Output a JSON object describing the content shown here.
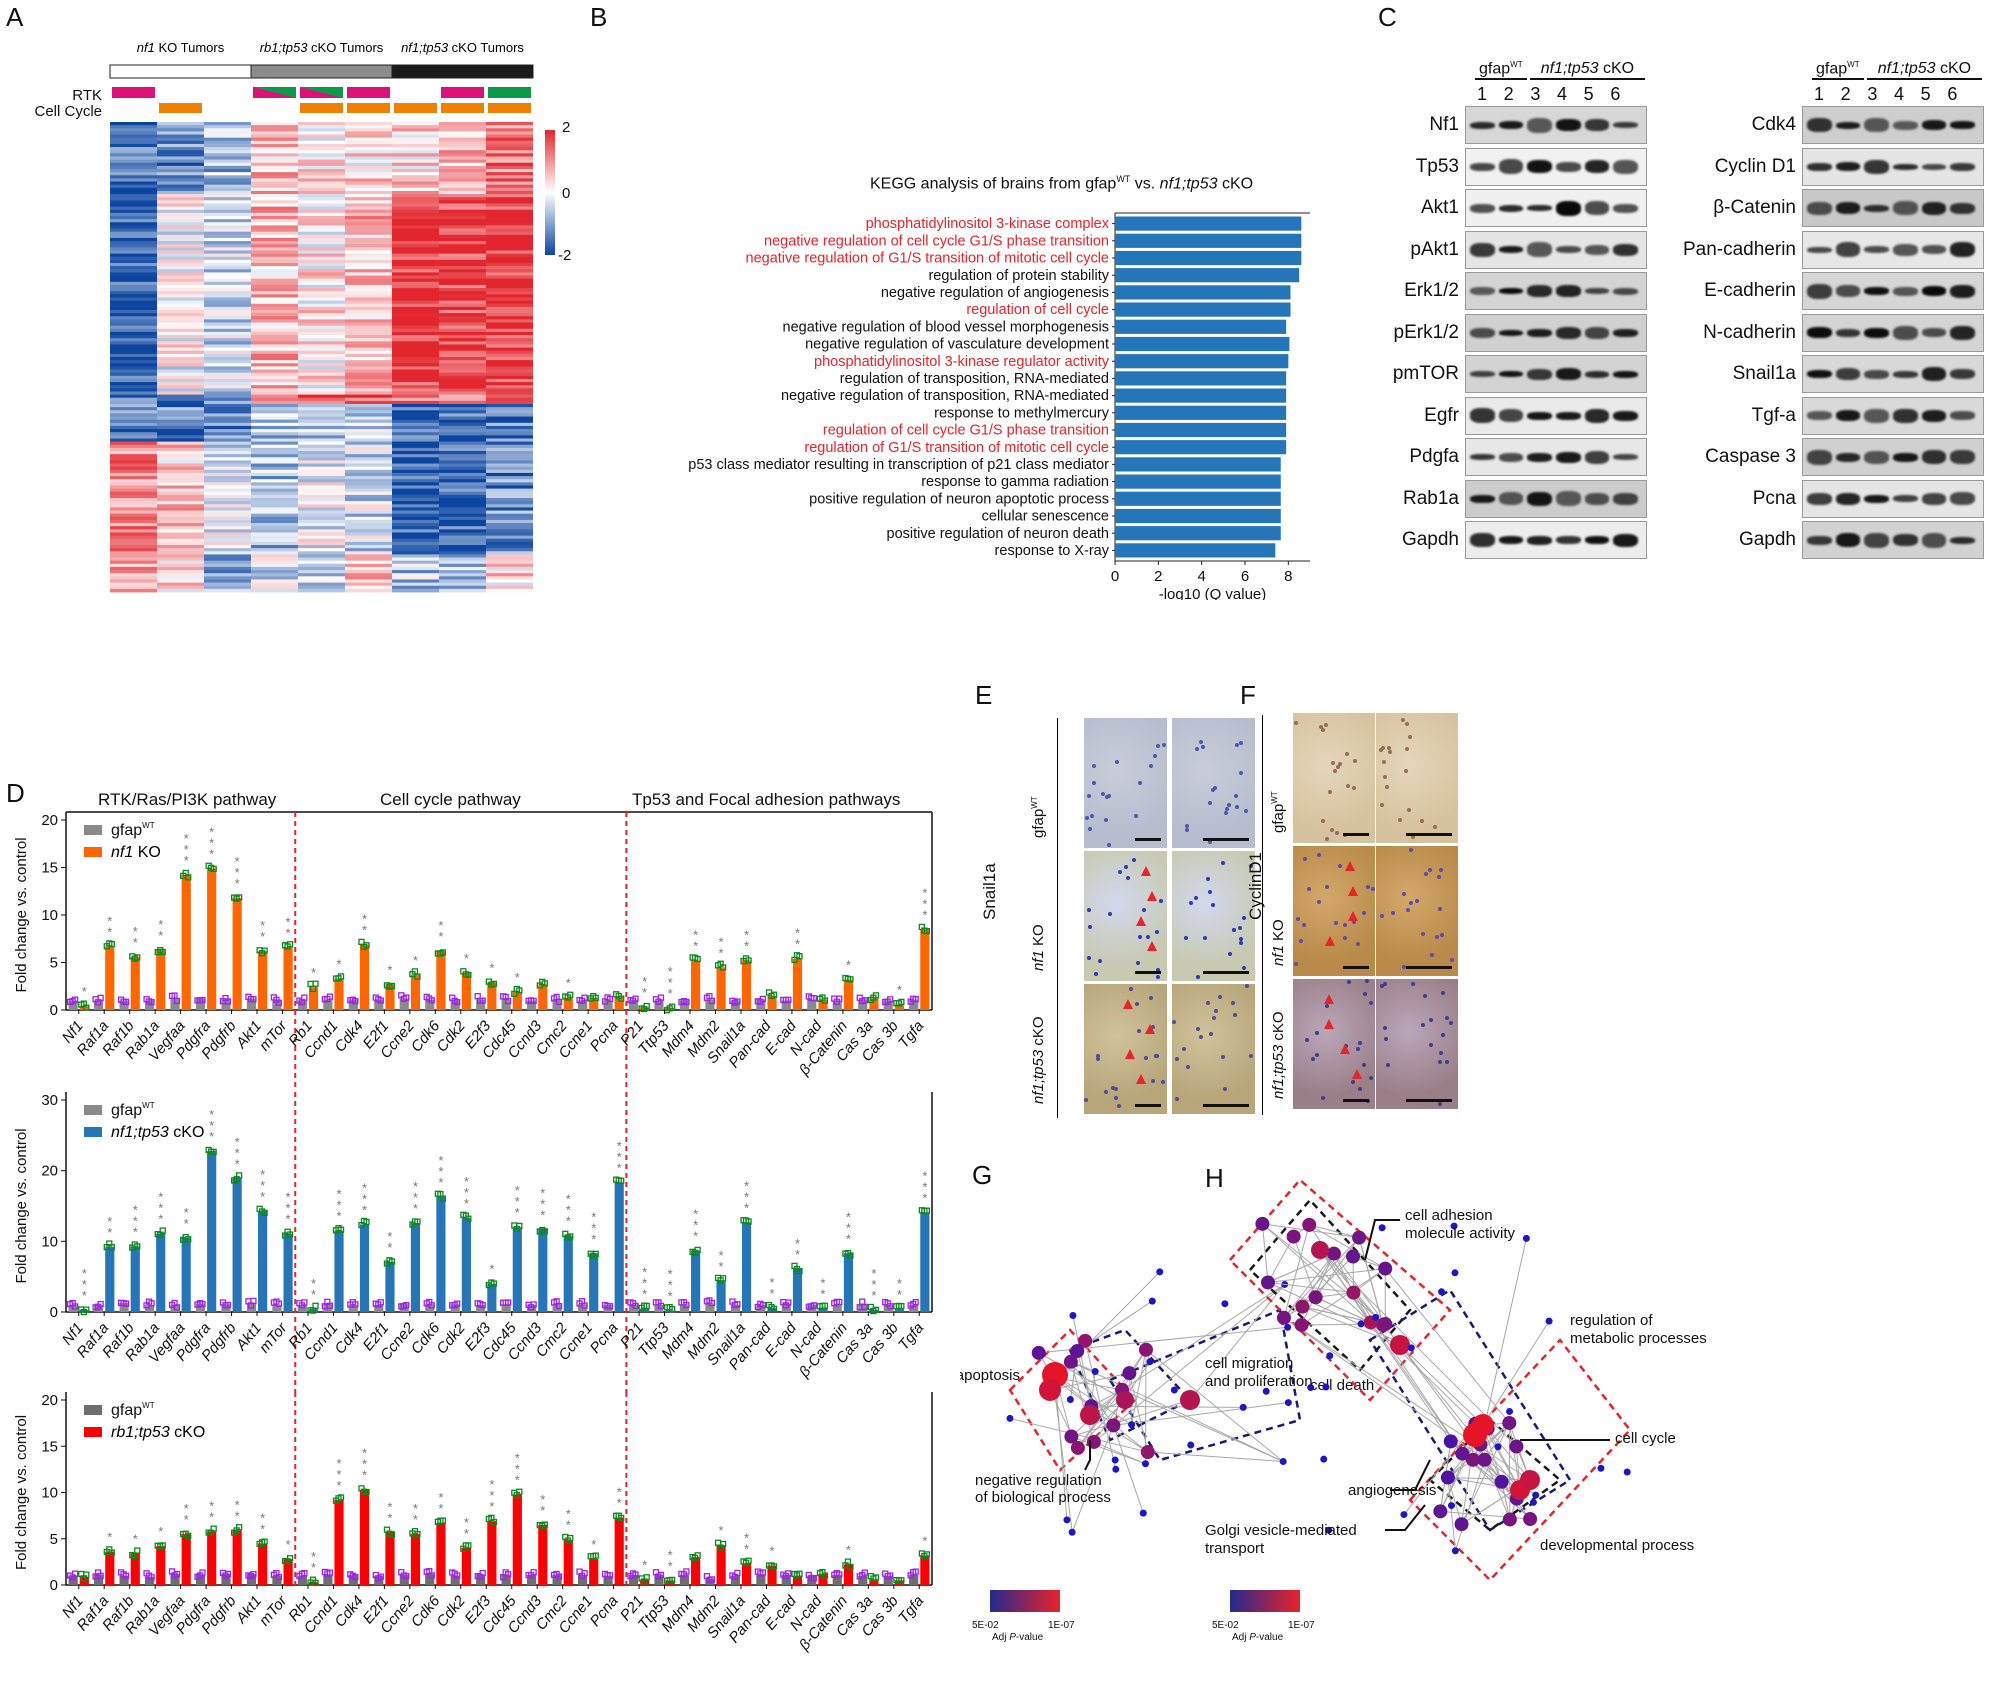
{
  "panels": {
    "A": {
      "letter": "A",
      "groups": [
        {
          "name_italic": "nf1",
          "name_rest": " KO Tumors",
          "fill": "#ffffff"
        },
        {
          "name_italic": "rb1;tp53",
          "name_rest": " cKO Tumors",
          "fill": "#8c8c8c"
        },
        {
          "name_italic": "nf1;tp53",
          "name_rest": " cKO Tumors",
          "fill": "#1a1a1a"
        }
      ],
      "row_labels": [
        "RTK",
        "Cell Cycle"
      ],
      "rtk_annotations": [
        "pink",
        "none",
        "none",
        "pink-green",
        "pink-green",
        "pink",
        "none",
        "pink",
        "green"
      ],
      "cellcycle_annotations": [
        false,
        true,
        false,
        false,
        true,
        true,
        true,
        true,
        true
      ],
      "colors": {
        "pink": "#e0107a",
        "green": "#0a9a48",
        "orange": "#f08000",
        "high": "#e3262d",
        "mid": "#ffffff",
        "low": "#0b45a0"
      },
      "colorbar_ticks": [
        "2",
        "0",
        "-2"
      ]
    },
    "B": {
      "letter": "B",
      "title_plain": "KEGG analysis of brains from gfap",
      "title_sup": "WT",
      "title_mid": " vs. ",
      "title_italic": "nf1;tp53",
      "title_end": " cKO"
    },
    "C": {
      "letter": "C",
      "group_wt": "gfap",
      "group_wt_sup": "WT",
      "group_ko_italic": "nf1;tp53",
      "group_ko_rest": " cKO",
      "lanes": [
        "1",
        "2",
        "3",
        "4",
        "5",
        "6"
      ],
      "left_blots": [
        "Nf1",
        "Tp53",
        "Akt1",
        "pAkt1",
        "Erk1/2",
        "pErk1/2",
        "pmTOR",
        "Egfr",
        "Pdgfa",
        "Rab1a",
        "Gapdh"
      ],
      "right_blots": [
        "Cdk4",
        "Cyclin D1",
        "β-Catenin",
        "Pan-cadherin",
        "E-cadherin",
        "N-cadherin",
        "Snail1a",
        "Tgf-a",
        "Caspase 3",
        "Pcna",
        "Gapdh"
      ]
    },
    "D": {
      "letter": "D",
      "pathway_titles": [
        "RTK/Ras/PI3K pathway",
        "Cell cycle pathway",
        "Tp53 and Focal adhesion pathways"
      ],
      "legend_wt": "gfap",
      "legend_wt_sup": "WT"
    },
    "E": {
      "letter": "E",
      "stain": "Snail1a",
      "rows": [
        {
          "italic": "",
          "rest": "gfap",
          "sup": "WT"
        },
        {
          "italic": "nf1",
          "rest": " KO",
          "sup": ""
        },
        {
          "italic": "nf1;tp53",
          "rest": " cKO",
          "sup": ""
        }
      ]
    },
    "F": {
      "letter": "F",
      "stain": "CyclinD1",
      "rows": [
        {
          "italic": "",
          "rest": "gfap",
          "sup": "WT"
        },
        {
          "italic": "nf1",
          "rest": " KO",
          "sup": ""
        },
        {
          "italic": "nf1;tp53",
          "rest": " cKO",
          "sup": ""
        }
      ]
    },
    "G": {
      "letter": "G",
      "labels": [
        "apoptosis",
        "cell death",
        "negative regulation",
        "of biological process"
      ],
      "scale_min": "5E-02",
      "scale_max": "1E-07",
      "scale_title": "Adj",
      "scale_title_it": "P",
      "scale_title_end": "-value"
    },
    "H": {
      "letter": "H",
      "labels": [
        "cell adhesion",
        "molecule activity",
        "regulation of",
        "metabolic processes",
        "cell migration",
        "and proliferation",
        "cell cycle",
        "angiogenesis",
        "Golgi vesicle-mediated",
        "transport",
        "developmental process"
      ],
      "scale_min": "5E-02",
      "scale_max": "1E-07",
      "scale_title": "Adj",
      "scale_title_it": "P",
      "scale_title_end": "-value"
    }
  },
  "chart_data": [
    {
      "id": "B",
      "type": "bar",
      "orientation": "horizontal",
      "title": "KEGG analysis of brains from gfapWT vs. nf1;tp53 cKO",
      "xlabel": "-log10 (Q value)",
      "ylabel": "",
      "xlim": [
        0,
        9
      ],
      "xticks": [
        0,
        2,
        4,
        6,
        8
      ],
      "bar_color": "#2576b8",
      "categories": [
        "phosphatidylinositol 3-kinase complex",
        "negative regulation of cell cycle G1/S phase transition",
        "negative regulation of G1/S transition of mitotic cell cycle",
        "regulation of protein stability",
        "negative regulation of angiogenesis",
        "regulation of cell cycle",
        "negative regulation of blood vessel morphogenesis",
        "negative regulation of vasculature development",
        "phosphatidylinositol 3-kinase regulator activity",
        "regulation of transposition, RNA-mediated",
        "negative regulation of transposition, RNA-mediated",
        "response to methylmercury",
        "regulation of cell cycle G1/S phase transition",
        "regulation of G1/S transition of mitotic cell cycle",
        "p53 class mediator resulting in transcription of p21 class mediator",
        "response to gamma radiation",
        "positive regulation of neuron apoptotic process",
        "cellular senescence",
        "positive regulation of neuron death",
        "response to X-ray"
      ],
      "highlighted": [
        true,
        true,
        true,
        false,
        false,
        true,
        false,
        false,
        true,
        false,
        false,
        false,
        true,
        true,
        false,
        false,
        false,
        false,
        false,
        false
      ],
      "values": [
        8.6,
        8.6,
        8.6,
        8.5,
        8.1,
        8.1,
        7.9,
        8.05,
        8.0,
        7.9,
        7.9,
        7.9,
        7.9,
        7.9,
        7.65,
        7.65,
        7.65,
        7.65,
        7.65,
        7.4
      ]
    },
    {
      "id": "D1",
      "type": "bar",
      "title": "",
      "ylabel": "Fold change vs. control",
      "ylim": [
        0,
        20
      ],
      "yticks": [
        0,
        5,
        10,
        15,
        20
      ],
      "categories": [
        "Nf1",
        "Raf1a",
        "Raf1b",
        "Rab1a",
        "Vegfaa",
        "Pdgfra",
        "Pdgfrb",
        "Akt1",
        "mTor",
        "Rb1",
        "Ccnd1",
        "Cdk4",
        "E2f1",
        "Ccne2",
        "Cdk6",
        "Cdk2",
        "E2f3",
        "Cdc45",
        "Ccnd3",
        "Cmc2",
        "Ccne1",
        "Pcna",
        "P21",
        "Ttp53",
        "Mdm4",
        "Mdm2",
        "Snail1a",
        "Pan-cad",
        "E-cad",
        "N-cad",
        "β-Catenin",
        "Cas 3a",
        "Cas 3b",
        "Tgfa"
      ],
      "separators_after": [
        8,
        21
      ],
      "series": [
        {
          "name": "gfapWT",
          "color": "#8a8a8a",
          "values": [
            1,
            1,
            1,
            1,
            1.2,
            1.2,
            1.1,
            1.2,
            1,
            1,
            1.1,
            1.1,
            1.1,
            1.2,
            1.1,
            1,
            1.1,
            1.1,
            1,
            1.1,
            1,
            1,
            1.1,
            1,
            1,
            1.1,
            1,
            1.1,
            1,
            1.1,
            1,
            1.1,
            1,
            1.1
          ]
        },
        {
          "name_italic": "nf1",
          "name": "nf1 KO",
          "color": "#ff6600",
          "values": [
            0.4,
            6.7,
            5.6,
            6.3,
            14.2,
            14.9,
            11.8,
            6.2,
            6.6,
            2.4,
            3.3,
            6.9,
            2.7,
            3.7,
            6.2,
            3.9,
            2.9,
            1.9,
            2.7,
            1.3,
            1.3,
            1.4,
            0.3,
            0.2,
            5.2,
            4.5,
            5.2,
            1.5,
            5.4,
            1.1,
            3.2,
            1.2,
            0.6,
            8.5
          ]
        }
      ],
      "significance": [
        "*",
        "**",
        "**",
        "**",
        "***",
        "***",
        "***",
        "**",
        "**",
        "*",
        "*",
        "**",
        "*",
        "*",
        "**",
        "*",
        "*",
        "*",
        "",
        "*",
        "",
        "",
        "**",
        "***",
        "**",
        "**",
        "**",
        "",
        "**",
        "",
        "*",
        "",
        "*",
        "***"
      ]
    },
    {
      "id": "D2",
      "type": "bar",
      "ylabel": "Fold change vs. control",
      "ylim": [
        0,
        30
      ],
      "yticks": [
        0,
        10,
        20,
        30
      ],
      "categories": [
        "Nf1",
        "Raf1a",
        "Raf1b",
        "Rab1a",
        "Vegfaa",
        "Pdgfra",
        "Pdgfrb",
        "Akt1",
        "mTor",
        "Rb1",
        "Ccnd1",
        "Cdk4",
        "E2f1",
        "Ccne2",
        "Cdk6",
        "Cdk2",
        "E2f3",
        "Cdc45",
        "Ccnd3",
        "Cmc2",
        "Ccne1",
        "Pcna",
        "P21",
        "Ttp53",
        "Mdm4",
        "Mdm2",
        "Snail1a",
        "Pan-cad",
        "E-cad",
        "N-cad",
        "β-Catenin",
        "Cas 3a",
        "Cas 3b",
        "Tgfa"
      ],
      "separators_after": [
        8,
        21
      ],
      "series": [
        {
          "name": "gfapWT",
          "color": "#8a8a8a",
          "values": [
            1,
            1,
            1.3,
            1,
            1,
            1.2,
            1.1,
            1.2,
            1,
            1,
            1.1,
            1,
            1,
            1.1,
            1.1,
            1.1,
            1,
            1.1,
            1,
            1.1,
            1.1,
            1,
            1.1,
            1,
            1,
            1.2,
            1,
            1,
            1.2,
            1,
            1,
            1,
            1,
            1
          ]
        },
        {
          "name_italic": "nf1;tp53",
          "name": "nf1;tp53 cKO",
          "color": "#2576b8",
          "values": [
            0.3,
            9.2,
            9.3,
            11.1,
            10.5,
            22.8,
            18.9,
            14.3,
            11.1,
            0.4,
            11.5,
            12.4,
            7.1,
            12.6,
            16.3,
            13.3,
            4.0,
            12.0,
            11.7,
            10.8,
            8.3,
            18.3,
            0.5,
            0.2,
            8.7,
            4.4,
            12.7,
            0.6,
            6.1,
            0.5,
            8.3,
            0.3,
            0.4,
            14.1
          ]
        }
      ],
      "significance": [
        "***",
        "**",
        "***",
        "***",
        "**",
        "***",
        "***",
        "***",
        "***",
        "**",
        "***",
        "***",
        "**",
        "***",
        "***",
        "***",
        "*",
        "***",
        "***",
        "***",
        "***",
        "***",
        "***",
        "***",
        "***",
        "**",
        "***",
        "**",
        "**",
        "**",
        "***",
        "***",
        "**",
        "***"
      ]
    },
    {
      "id": "D3",
      "type": "bar",
      "ylabel": "Fold change vs. control",
      "ylim": [
        0,
        20
      ],
      "yticks": [
        0,
        5,
        10,
        15,
        20
      ],
      "categories": [
        "Nf1",
        "Raf1a",
        "Raf1b",
        "Rab1a",
        "Vegfaa",
        "Pdgfra",
        "Pdgfrb",
        "Akt1",
        "mTor",
        "Rb1",
        "Ccnd1",
        "Cdk4",
        "E2f1",
        "Ccne2",
        "Cdk6",
        "Cdk2",
        "E2f3",
        "Cdc45",
        "Ccnd3",
        "Cmc2",
        "Ccne1",
        "Pcna",
        "P21",
        "Ttp53",
        "Mdm4",
        "Mdm2",
        "Snail1a",
        "Pan-cad",
        "E-cad",
        "N-cad",
        "β-Catenin",
        "Cas 3a",
        "Cas 3b",
        "Tgfa"
      ],
      "separators_after": [
        8,
        21
      ],
      "series": [
        {
          "name": "gfapWT",
          "color": "#6e6e6e",
          "values": [
            1,
            1.1,
            1,
            0.9,
            1.2,
            1.1,
            1.2,
            1.2,
            1,
            1,
            1.1,
            1.1,
            1,
            1.1,
            1.2,
            1,
            1.1,
            1.1,
            1.1,
            1.1,
            1.1,
            1,
            1.1,
            1.1,
            1.1,
            0.7,
            1,
            1.1,
            1.1,
            1,
            1.1,
            1,
            1,
            1.1
          ]
        },
        {
          "name_italic": "rb1;tp53",
          "name": "rb1;tp53 cKO",
          "color": "#ff0000",
          "values": [
            0.9,
            3.6,
            3.4,
            4.2,
            5.5,
            5.8,
            5.9,
            4.5,
            2.8,
            0.3,
            9.2,
            10.3,
            5.7,
            5.5,
            6.7,
            4.0,
            6.9,
            9.8,
            6.5,
            4.9,
            2.8,
            7.3,
            0.6,
            0.5,
            3.0,
            4.3,
            2.3,
            2.1,
            1.0,
            1.2,
            2.2,
            0.6,
            0.5,
            3.2
          ]
        }
      ],
      "significance": [
        "",
        "*",
        "*",
        "*",
        "**",
        "**",
        "**",
        "**",
        "*",
        "**",
        "***",
        "***",
        "**",
        "**",
        "**",
        "**",
        "***",
        "***",
        "**",
        "**",
        "*",
        "**",
        "*",
        "**",
        "",
        "*",
        "**",
        "*",
        "",
        "",
        "*",
        "",
        "",
        "*"
      ]
    }
  ]
}
